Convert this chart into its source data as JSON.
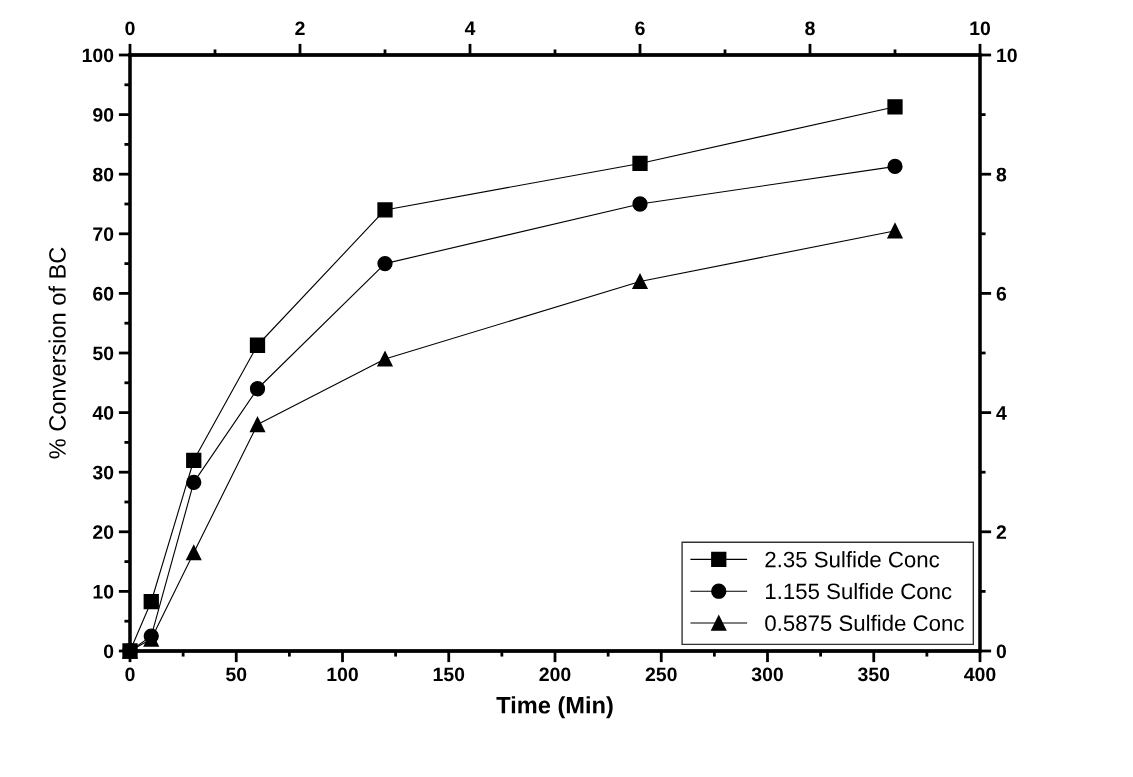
{
  "chart_data": {
    "type": "line",
    "xlabel": "Time (Min)",
    "ylabel": "% Conversion of BC",
    "x": [
      0,
      10,
      30,
      60,
      120,
      240,
      360
    ],
    "series": [
      {
        "name": "2.35 Sulfide Conc",
        "color": "#000000",
        "marker": "square",
        "values": [
          0,
          8.3,
          32,
          51.3,
          74,
          81.8,
          91.3
        ]
      },
      {
        "name": "1.155 Sulfide Conc",
        "color": "#000000",
        "marker": "circle",
        "values": [
          0,
          2.5,
          28.3,
          44,
          65,
          75,
          81.3
        ]
      },
      {
        "name": "0.5875 Sulfide Conc",
        "color": "#000000",
        "marker": "triangle",
        "values": [
          0,
          2,
          16.5,
          38,
          49,
          62,
          70.5
        ]
      }
    ],
    "xlim": [
      0,
      400
    ],
    "xticks": [
      0,
      50,
      100,
      150,
      200,
      250,
      300,
      350,
      400
    ],
    "ylim": [
      0,
      100
    ],
    "yticks": [
      0,
      10,
      20,
      30,
      40,
      50,
      60,
      70,
      80,
      90,
      100
    ],
    "x2lim": [
      0,
      10
    ],
    "x2ticks": [
      0,
      2,
      4,
      6,
      8,
      10
    ],
    "y2lim": [
      0,
      10
    ],
    "y2ticks": [
      0,
      2,
      4,
      6,
      8,
      10
    ],
    "line_style": "solid",
    "grid": false,
    "legend": "bottom right"
  }
}
